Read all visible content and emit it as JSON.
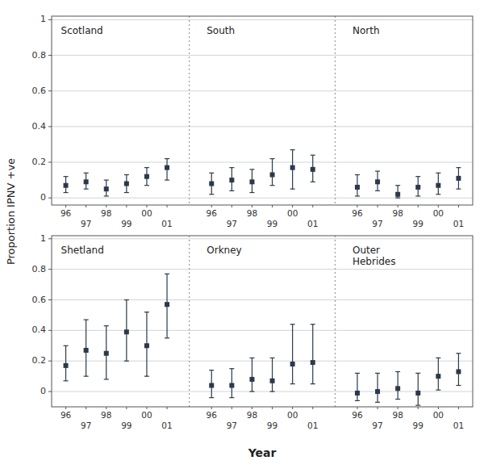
{
  "chart_data": [
    {
      "type": "errorbar",
      "ylabel": "Proportion IPNV +ve",
      "categories": [
        "96",
        "97",
        "98",
        "99",
        "00",
        "01"
      ],
      "series": [
        {
          "name": "Scotland",
          "values": [
            0.07,
            0.09,
            0.05,
            0.08,
            0.12,
            0.17
          ],
          "ci_low": [
            0.03,
            0.05,
            0.01,
            0.03,
            0.07,
            0.1
          ],
          "ci_high": [
            0.12,
            0.14,
            0.1,
            0.13,
            0.17,
            0.22
          ]
        },
        {
          "name": "South",
          "values": [
            0.08,
            0.1,
            0.09,
            0.13,
            0.17,
            0.16
          ],
          "ci_low": [
            0.02,
            0.04,
            0.03,
            0.07,
            0.05,
            0.09
          ],
          "ci_high": [
            0.14,
            0.17,
            0.16,
            0.22,
            0.27,
            0.24
          ]
        },
        {
          "name": "North",
          "values": [
            0.06,
            0.09,
            0.02,
            0.06,
            0.07,
            0.11
          ],
          "ci_low": [
            0.01,
            0.04,
            0.0,
            0.01,
            0.02,
            0.05
          ],
          "ci_high": [
            0.13,
            0.15,
            0.07,
            0.12,
            0.14,
            0.17
          ]
        }
      ],
      "ylim": [
        -0.04,
        1.02
      ],
      "yticks": [
        0,
        0.2,
        0.4,
        0.6,
        0.8,
        1
      ],
      "grid": true
    },
    {
      "type": "errorbar",
      "xlabel": "Year",
      "categories": [
        "96",
        "97",
        "98",
        "99",
        "00",
        "01"
      ],
      "series": [
        {
          "name": "Shetland",
          "values": [
            0.17,
            0.27,
            0.25,
            0.39,
            0.3,
            0.57
          ],
          "ci_low": [
            0.07,
            0.1,
            0.08,
            0.2,
            0.1,
            0.35
          ],
          "ci_high": [
            0.3,
            0.47,
            0.43,
            0.6,
            0.52,
            0.77
          ]
        },
        {
          "name": "Orkney",
          "values": [
            0.04,
            0.04,
            0.08,
            0.07,
            0.18,
            0.19
          ],
          "ci_low": [
            -0.04,
            -0.04,
            0.0,
            0.0,
            0.05,
            0.05
          ],
          "ci_high": [
            0.14,
            0.15,
            0.22,
            0.22,
            0.44,
            0.44
          ]
        },
        {
          "name": "Outer\nHebrides",
          "values": [
            -0.01,
            0.0,
            0.02,
            -0.01,
            0.1,
            0.13
          ],
          "ci_low": [
            -0.06,
            -0.07,
            -0.05,
            -0.09,
            0.01,
            0.04
          ],
          "ci_high": [
            0.12,
            0.12,
            0.13,
            0.12,
            0.22,
            0.25
          ]
        }
      ],
      "ylim": [
        -0.1,
        1.02
      ],
      "yticks": [
        0,
        0.2,
        0.4,
        0.6,
        0.8,
        1
      ],
      "grid": true
    }
  ]
}
